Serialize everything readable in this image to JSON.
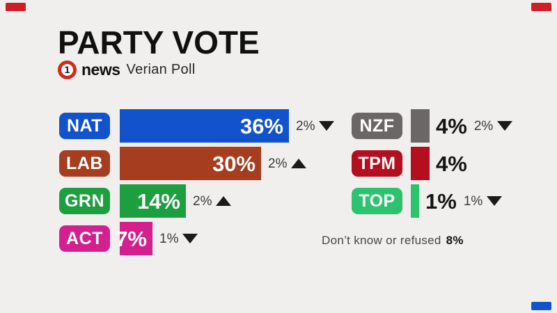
{
  "header": {
    "title": "PARTY VOTE",
    "logo": {
      "number": "1",
      "brand": "news",
      "suffix": "Verian Poll"
    }
  },
  "chart_data": {
    "type": "bar",
    "orientation": "horizontal",
    "title": "PARTY VOTE",
    "source_label": "1news Verian Poll",
    "unit": "%",
    "xlim": [
      0,
      40
    ],
    "grid": "off",
    "legend": "none",
    "columns": {
      "left": [
        "NAT",
        "LAB",
        "GRN",
        "ACT"
      ],
      "right": [
        "NZF",
        "TPM",
        "TOP"
      ]
    },
    "series": [
      {
        "party": "NAT",
        "value": 36,
        "value_label": "36%",
        "change_label": "2%",
        "trend": "down",
        "color": "#1253cb",
        "column": "left",
        "value_position": "inside"
      },
      {
        "party": "LAB",
        "value": 30,
        "value_label": "30%",
        "change_label": "2%",
        "trend": "up",
        "color": "#a53d1e",
        "column": "left",
        "value_position": "inside"
      },
      {
        "party": "GRN",
        "value": 14,
        "value_label": "14%",
        "change_label": "2%",
        "trend": "up",
        "color": "#1d9e3f",
        "column": "left",
        "value_position": "inside"
      },
      {
        "party": "ACT",
        "value": 7,
        "value_label": "7%",
        "change_label": "1%",
        "trend": "down",
        "color": "#d41f8e",
        "column": "left",
        "value_position": "inside"
      },
      {
        "party": "NZF",
        "value": 4,
        "value_label": "4%",
        "change_label": "2%",
        "trend": "down",
        "color": "#6b6767",
        "column": "right",
        "value_position": "outside"
      },
      {
        "party": "TPM",
        "value": 4,
        "value_label": "4%",
        "change_label": null,
        "trend": "none",
        "color": "#b30f1f",
        "column": "right",
        "value_position": "outside"
      },
      {
        "party": "TOP",
        "value": 1,
        "value_label": "1%",
        "change_label": "1%",
        "trend": "down",
        "color": "#2bc36d",
        "column": "right",
        "value_position": "outside"
      }
    ],
    "footnote": {
      "label": "Don’t know or refused",
      "value": "8%"
    }
  },
  "decorations": {
    "corner_top_left_color": "#d01e28",
    "corner_top_right_color": "#d01e28",
    "corner_bottom_right_color": "#1253cb"
  }
}
